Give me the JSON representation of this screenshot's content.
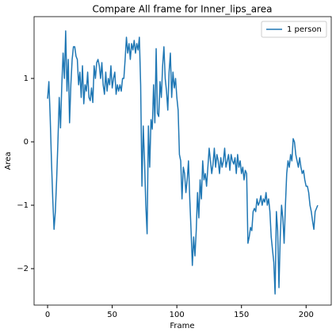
{
  "chart_data": {
    "type": "line",
    "title": "Compare All frame for Inner_lips_area",
    "xlabel": "Frame",
    "ylabel": "Area",
    "x": [
      0,
      1,
      2,
      3,
      4,
      5,
      6,
      7,
      8,
      9,
      10,
      11,
      12,
      13,
      14,
      15,
      16,
      17,
      18,
      19,
      20,
      21,
      22,
      23,
      24,
      25,
      26,
      27,
      28,
      29,
      30,
      31,
      32,
      33,
      34,
      35,
      36,
      37,
      38,
      39,
      40,
      41,
      42,
      43,
      44,
      45,
      46,
      47,
      48,
      49,
      50,
      51,
      52,
      53,
      54,
      55,
      56,
      57,
      58,
      59,
      60,
      61,
      62,
      63,
      64,
      65,
      66,
      67,
      68,
      69,
      70,
      71,
      72,
      73,
      74,
      75,
      76,
      77,
      78,
      79,
      80,
      81,
      82,
      83,
      84,
      85,
      86,
      87,
      88,
      89,
      90,
      91,
      92,
      93,
      94,
      95,
      96,
      97,
      98,
      99,
      100,
      101,
      102,
      103,
      104,
      105,
      106,
      107,
      108,
      109,
      110,
      111,
      112,
      113,
      114,
      115,
      116,
      117,
      118,
      119,
      120,
      121,
      122,
      123,
      124,
      125,
      126,
      127,
      128,
      129,
      130,
      131,
      132,
      133,
      134,
      135,
      136,
      137,
      138,
      139,
      140,
      141,
      142,
      143,
      144,
      145,
      146,
      147,
      148,
      149,
      150,
      151,
      152,
      153,
      154,
      155,
      156,
      157,
      158,
      159,
      160,
      161,
      162,
      163,
      164,
      165,
      166,
      167,
      168,
      169,
      170,
      171,
      172,
      173,
      174,
      175,
      176,
      177,
      178,
      179,
      180,
      181,
      182,
      183,
      184,
      185,
      186,
      187,
      188,
      189,
      190,
      191,
      192,
      193,
      194,
      195,
      196,
      197,
      198,
      199,
      200,
      201,
      202,
      203,
      204,
      205,
      206,
      207,
      208,
      209
    ],
    "series": [
      {
        "name": "1 person",
        "color": "#1f77b4",
        "values": [
          0.68,
          0.95,
          0.4,
          -0.3,
          -0.9,
          -1.38,
          -1.1,
          -0.6,
          0.0,
          0.7,
          0.22,
          0.9,
          1.4,
          1.0,
          1.75,
          0.8,
          1.3,
          0.3,
          0.9,
          1.3,
          1.5,
          1.5,
          1.35,
          1.3,
          0.9,
          1.1,
          0.7,
          1.2,
          0.6,
          0.9,
          0.8,
          1.1,
          0.7,
          0.65,
          0.85,
          0.62,
          1.2,
          1.0,
          1.25,
          1.3,
          1.2,
          1.0,
          1.25,
          0.9,
          0.75,
          1.1,
          0.8,
          1.0,
          0.9,
          1.2,
          0.85,
          1.0,
          1.1,
          0.75,
          0.9,
          0.8,
          0.9,
          0.8,
          1.0,
          1.0,
          1.3,
          1.65,
          1.4,
          1.55,
          1.3,
          1.55,
          1.45,
          1.6,
          1.4,
          1.55,
          1.45,
          1.65,
          0.9,
          -0.7,
          0.25,
          -0.3,
          -1.0,
          -1.45,
          0.25,
          -0.4,
          0.35,
          0.2,
          0.9,
          0.3,
          1.47,
          0.45,
          0.4,
          0.95,
          0.7,
          1.2,
          1.5,
          1.0,
          0.8,
          0.5,
          1.1,
          1.4,
          0.7,
          1.1,
          0.85,
          1.0,
          0.7,
          0.5,
          -0.2,
          -0.3,
          -0.9,
          -0.4,
          -0.5,
          -0.8,
          -0.6,
          -0.3,
          -0.9,
          -1.4,
          -1.95,
          -1.5,
          -1.8,
          -1.4,
          -0.8,
          -1.2,
          -0.6,
          -0.9,
          -0.3,
          -0.6,
          -0.5,
          -0.7,
          -0.4,
          -0.1,
          -0.3,
          -0.5,
          -0.35,
          -0.1,
          -0.4,
          -0.2,
          -0.3,
          -0.5,
          -0.25,
          -0.4,
          -0.3,
          -0.1,
          -0.4,
          -0.3,
          -0.2,
          -0.45,
          -0.2,
          -0.3,
          -0.35,
          -0.25,
          -0.5,
          -0.2,
          -0.4,
          -0.3,
          -0.5,
          -0.4,
          -0.6,
          -0.45,
          -0.5,
          -1.6,
          -1.5,
          -1.35,
          -1.4,
          -1.1,
          -1.05,
          -1.1,
          -0.9,
          -1.0,
          -0.95,
          -0.85,
          -1.0,
          -0.9,
          -0.95,
          -0.8,
          -1.0,
          -0.9,
          -1.1,
          -1.5,
          -1.7,
          -1.9,
          -2.4,
          -1.1,
          -1.4,
          -2.3,
          -1.5,
          -1.0,
          -1.2,
          -1.6,
          -1.0,
          -0.5,
          -0.3,
          -0.4,
          -0.2,
          -0.3,
          0.05,
          0.0,
          -0.2,
          -0.3,
          -0.4,
          -0.25,
          -0.4,
          -0.5,
          -0.45,
          -0.6,
          -0.7,
          -0.7,
          -0.8,
          -1.0,
          -1.1,
          -1.25,
          -1.38,
          -1.1,
          -1.05,
          -1.0
        ]
      }
    ],
    "xlim": [
      -10.45,
      219.45
    ],
    "xticks": [
      0,
      50,
      100,
      150,
      200
    ],
    "ylim": [
      -2.575,
      1.975
    ],
    "yticks": [
      {
        "value": -2,
        "label": "−2"
      },
      {
        "value": -1,
        "label": "−1"
      },
      0,
      1
    ],
    "legend": "upper right"
  }
}
